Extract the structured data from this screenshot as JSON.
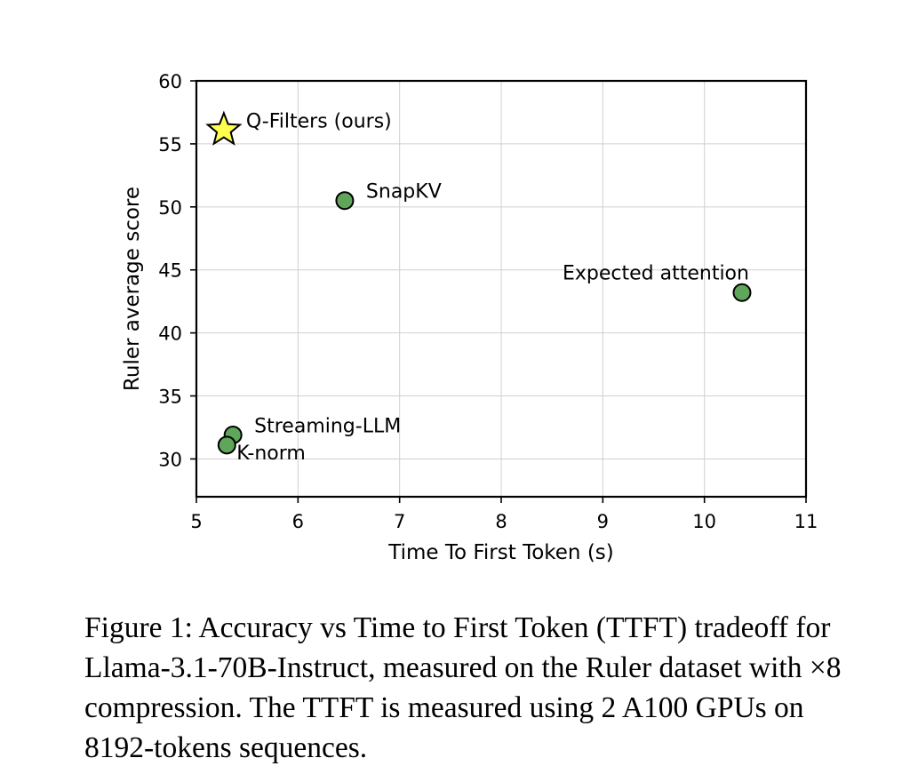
{
  "chart_data": {
    "type": "scatter",
    "xlabel": "Time To First Token (s)",
    "ylabel": "Ruler average score",
    "xlim": [
      5,
      11
    ],
    "ylim": [
      27,
      60
    ],
    "xticks": [
      "5",
      "6",
      "7",
      "8",
      "9",
      "10",
      "11"
    ],
    "yticks": [
      "30",
      "35",
      "40",
      "45",
      "50",
      "55",
      "60"
    ],
    "grid": true,
    "points": [
      {
        "label": "Q-Filters (ours)",
        "x": 5.27,
        "y": 56.1,
        "marker": "star",
        "color": "#ffff4d"
      },
      {
        "label": "SnapKV",
        "x": 6.46,
        "y": 50.5,
        "marker": "circle",
        "color": "#5fa65a"
      },
      {
        "label": "Expected attention",
        "x": 10.37,
        "y": 43.2,
        "marker": "circle",
        "color": "#5fa65a"
      },
      {
        "label": "Streaming-LLM",
        "x": 5.36,
        "y": 31.9,
        "marker": "circle",
        "color": "#5fa65a"
      },
      {
        "label": "K-norm",
        "x": 5.3,
        "y": 31.1,
        "marker": "circle",
        "color": "#5fa65a"
      }
    ]
  },
  "caption": {
    "text": "Figure 1: Accuracy vs Time to First Token (TTFT) tradeoff for Llama-3.1-70B-Instruct, measured on the Ruler dataset with ×8 compression. The TTFT is measured using 2 A100 GPUs on 8192-tokens sequences."
  }
}
